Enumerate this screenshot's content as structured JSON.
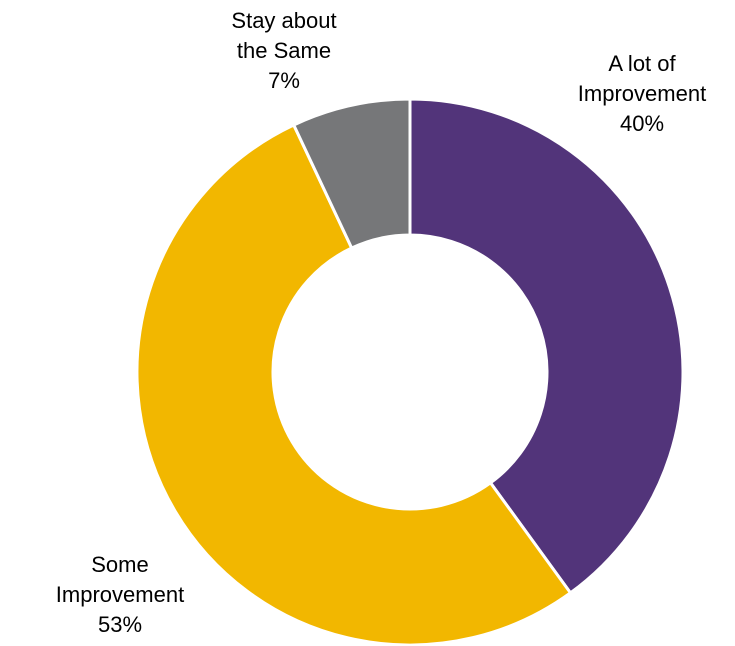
{
  "chart_data": {
    "type": "pie",
    "donut": true,
    "legend": "none",
    "slices": [
      {
        "label_lines": [
          "A lot of",
          "Improvement"
        ],
        "value": 40,
        "value_label": "40%",
        "color": "#52347a"
      },
      {
        "label_lines": [
          "Some",
          "Improvement"
        ],
        "value": 53,
        "value_label": "53%",
        "color": "#f2b700"
      },
      {
        "label_lines": [
          "Stay about",
          "the Same"
        ],
        "value": 7,
        "value_label": "7%",
        "color": "#767779"
      }
    ]
  }
}
